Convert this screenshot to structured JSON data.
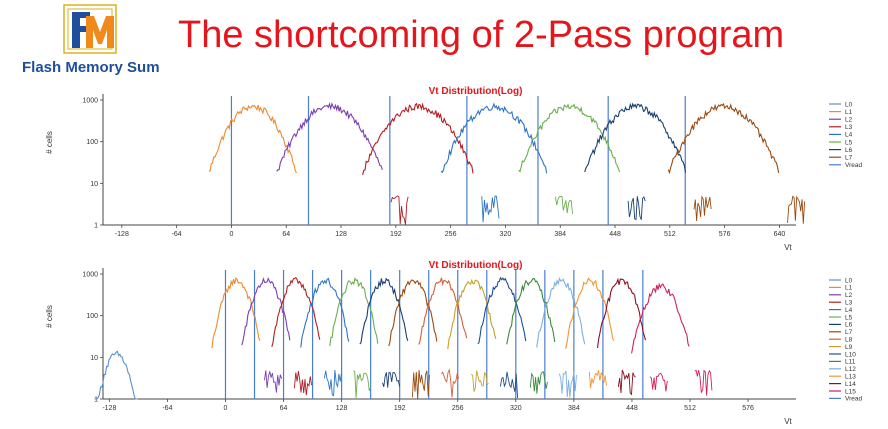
{
  "header": {
    "title": "The shortcoming of 2-Pass program",
    "logo_text": "Flash Memory Summit"
  },
  "colors": {
    "title": "#e4161b",
    "logo_blue": "#1f4e9c",
    "logo_orange": "#f08a1c",
    "logo_gold": "#d8b31e"
  },
  "chart_data": [
    {
      "type": "line",
      "title": "Vt Distribution(Log)",
      "xlabel": "Vt",
      "ylabel": "# cells",
      "yscale": "log",
      "xlim": [
        -150,
        650
      ],
      "ylim": [
        1,
        1000
      ],
      "xticks": [
        -128,
        -64,
        0,
        64,
        128,
        192,
        256,
        320,
        384,
        448,
        512,
        576,
        640
      ],
      "yticks": [
        1,
        10,
        100,
        1000
      ],
      "grid": false,
      "legend": "right",
      "series": [
        {
          "name": "L0",
          "color": "#5b8fd3"
        },
        {
          "name": "L1",
          "color": "#ef8a2e",
          "peak_x": 25,
          "peak_y": 700,
          "sigma": 19
        },
        {
          "name": "L2",
          "color": "#7a3fb5",
          "peak_x": 115,
          "peak_y": 700,
          "sigma": 23
        },
        {
          "name": "L3",
          "color": "#b01f24",
          "peak_x": 218,
          "peak_y": 700,
          "sigma": 24
        },
        {
          "name": "L4",
          "color": "#2e74c6",
          "peak_x": 307,
          "peak_y": 700,
          "sigma": 23
        },
        {
          "name": "L5",
          "color": "#6ab04c",
          "peak_x": 395,
          "peak_y": 700,
          "sigma": 22
        },
        {
          "name": "L6",
          "color": "#1a3f73",
          "peak_x": 472,
          "peak_y": 700,
          "sigma": 22
        },
        {
          "name": "L7",
          "color": "#9a4a10",
          "peak_x": 575,
          "peak_y": 700,
          "sigma": 24
        },
        {
          "name": "Vread",
          "color": "#4a7fd0",
          "lines": [
            0,
            90,
            185,
            275,
            358,
            440,
            530
          ]
        }
      ]
    },
    {
      "type": "line",
      "title": "Vt Distribution(Log)",
      "xlabel": "Vt",
      "ylabel": "# cells",
      "yscale": "log",
      "xlim": [
        -135,
        620
      ],
      "ylim": [
        1,
        1000
      ],
      "xticks": [
        -128,
        -64,
        0,
        64,
        128,
        192,
        256,
        320,
        384,
        448,
        512,
        576
      ],
      "yticks": [
        1,
        10,
        100,
        1000
      ],
      "grid": false,
      "legend": "right",
      "series": [
        {
          "name": "L0",
          "color": "#5b8fd3",
          "peak_x": -120,
          "peak_y": 12,
          "sigma": 9
        },
        {
          "name": "L1",
          "color": "#ef8a2e",
          "peak_x": 12,
          "peak_y": 700,
          "sigma": 10
        },
        {
          "name": "L2",
          "color": "#7a3fb5",
          "peak_x": 45,
          "peak_y": 700,
          "sigma": 10
        },
        {
          "name": "L3",
          "color": "#b01f24",
          "peak_x": 78,
          "peak_y": 700,
          "sigma": 10
        },
        {
          "name": "L4",
          "color": "#2e74c6",
          "peak_x": 110,
          "peak_y": 700,
          "sigma": 10
        },
        {
          "name": "L5",
          "color": "#6ab04c",
          "peak_x": 142,
          "peak_y": 700,
          "sigma": 10
        },
        {
          "name": "L6",
          "color": "#1a3f73",
          "peak_x": 175,
          "peak_y": 700,
          "sigma": 10
        },
        {
          "name": "L7",
          "color": "#9a4a10",
          "peak_x": 207,
          "peak_y": 700,
          "sigma": 10
        },
        {
          "name": "L8",
          "color": "#d35f3a",
          "peak_x": 240,
          "peak_y": 700,
          "sigma": 10
        },
        {
          "name": "L9",
          "color": "#c7a02a",
          "peak_x": 272,
          "peak_y": 700,
          "sigma": 10
        },
        {
          "name": "L10",
          "color": "#1f4f8f",
          "peak_x": 305,
          "peak_y": 700,
          "sigma": 10
        },
        {
          "name": "L11",
          "color": "#3a8c3a",
          "peak_x": 337,
          "peak_y": 700,
          "sigma": 10
        },
        {
          "name": "L12",
          "color": "#7fb0e0",
          "peak_x": 370,
          "peak_y": 700,
          "sigma": 10
        },
        {
          "name": "L13",
          "color": "#f0962f",
          "peak_x": 402,
          "peak_y": 700,
          "sigma": 10
        },
        {
          "name": "L14",
          "color": "#8b0f1f",
          "peak_x": 437,
          "peak_y": 700,
          "sigma": 10
        },
        {
          "name": "L15",
          "color": "#d0215a",
          "peak_x": 480,
          "peak_y": 500,
          "sigma": 12
        },
        {
          "name": "Vread",
          "color": "#4a7fd0",
          "lines": [
            0,
            32,
            64,
            96,
            128,
            160,
            192,
            224,
            256,
            288,
            320,
            352,
            384,
            416,
            460
          ]
        }
      ]
    }
  ]
}
